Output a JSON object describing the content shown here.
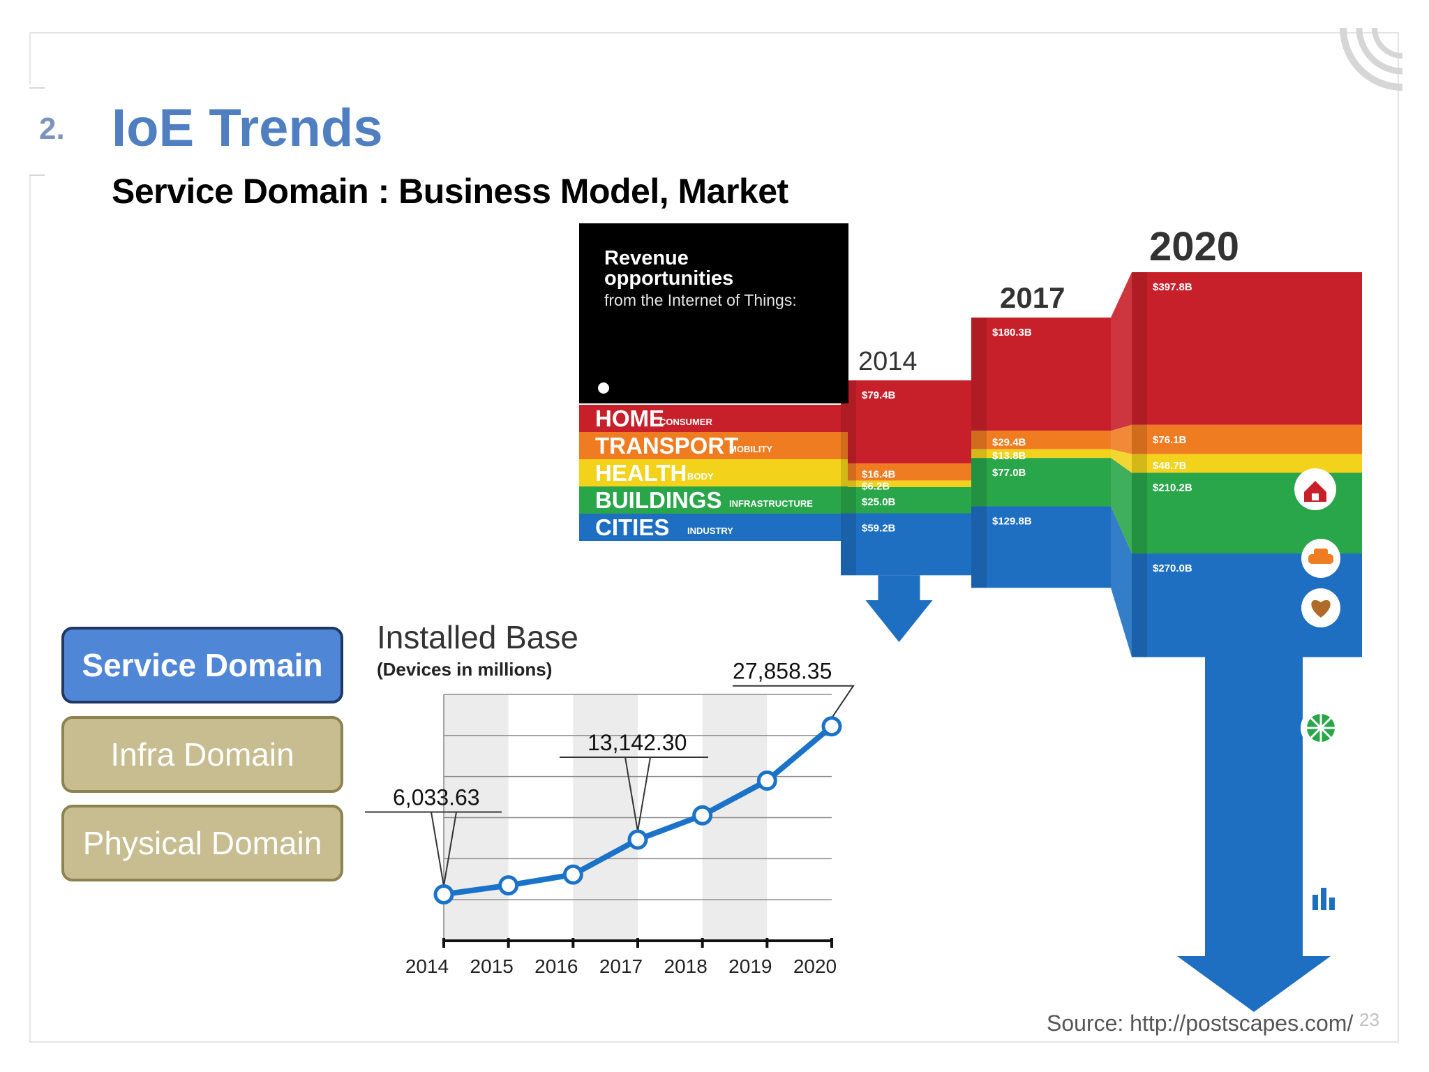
{
  "slide": {
    "number": "2.",
    "title": "IoE Trends",
    "subtitle": "Service Domain : Business Model, Market",
    "page": "23",
    "source": "Source: http://postscapes.com/"
  },
  "domains": [
    {
      "label": "Service Domain",
      "active": true
    },
    {
      "label": "Infra Domain",
      "active": false
    },
    {
      "label": "Physical Domain",
      "active": false
    }
  ],
  "infographic": {
    "title_line1": "Revenue",
    "title_line2": "opportunities",
    "title_line3": "from the Internet of Things:",
    "category_colors": {
      "HOME": "#c8202a",
      "TRANSPORT": "#f07c22",
      "HEALTH": "#f2d21b",
      "BUILDINGS": "#2aa64a",
      "CITIES": "#1e6fc2"
    },
    "icons": [
      "home-icon",
      "car-icon",
      "heart-icon",
      "globe-icon",
      "city-icon"
    ]
  },
  "chart_data": [
    {
      "type": "line",
      "title": "Installed Base",
      "subtitle": "(Devices in millions)",
      "x": [
        "2014",
        "2015",
        "2016",
        "2017",
        "2018",
        "2019",
        "2020"
      ],
      "series": [
        {
          "values": [
            6033.63,
            7200,
            8600,
            13142.3,
            16300,
            20800,
            27858.35
          ]
        }
      ],
      "annotations": [
        "6,033.63",
        "13,142.30",
        "27,858.35"
      ],
      "ylim": [
        0,
        32000
      ],
      "grid": true,
      "color": "#1a73c8"
    },
    {
      "type": "area",
      "title": "",
      "years": [
        "2014",
        "2017",
        "2020"
      ],
      "categories": [
        {
          "name": "HOME",
          "tag": "CONSUMER",
          "values": [
            79.4,
            180.3,
            397.8
          ],
          "labels": [
            "$79.4B",
            "$180.3B",
            "$397.8B"
          ]
        },
        {
          "name": "TRANSPORT",
          "tag": "MOBILITY",
          "values": [
            16.4,
            29.4,
            76.1
          ],
          "labels": [
            "$16.4B",
            "$29.4B",
            "$76.1B"
          ]
        },
        {
          "name": "HEALTH",
          "tag": "BODY",
          "values": [
            6.2,
            13.8,
            48.7
          ],
          "labels": [
            "$6.2B",
            "$13.8B",
            "$48.7B"
          ]
        },
        {
          "name": "BUILDINGS",
          "tag": "INFRASTRUCTURE",
          "values": [
            25.0,
            77.0,
            210.2
          ],
          "labels": [
            "$25.0B",
            "$77.0B",
            "$210.2B"
          ]
        },
        {
          "name": "CITIES",
          "tag": "INDUSTRY",
          "values": [
            59.2,
            129.8,
            270.0
          ],
          "labels": [
            "$59.2B",
            "$129.8B",
            "$270.0B"
          ]
        }
      ]
    }
  ]
}
